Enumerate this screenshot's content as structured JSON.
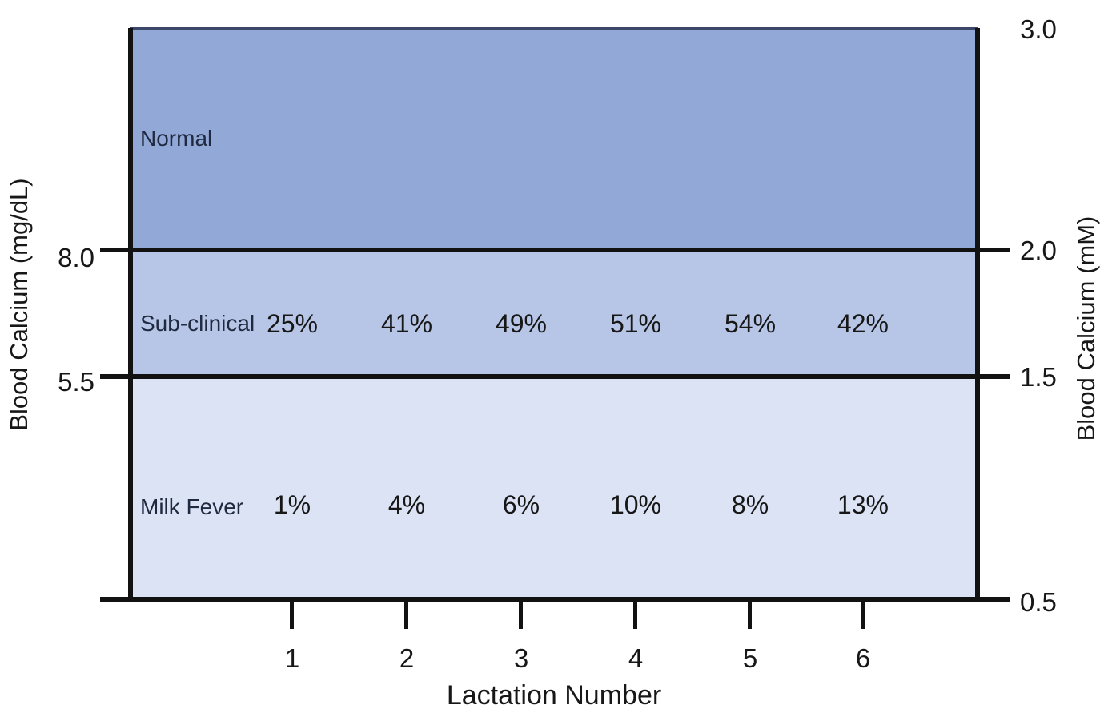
{
  "chart_data": {
    "type": "table",
    "title": "",
    "xlabel": "Lactation Number",
    "x_ticks": [
      "1",
      "2",
      "3",
      "4",
      "5",
      "6"
    ],
    "left_axis": {
      "label": "Blood Calcium (mg/dL)",
      "ticks": [
        "8.0",
        "5.5"
      ]
    },
    "right_axis": {
      "label": "Blood Calcium (mM)",
      "ticks": [
        "3.0",
        "2.0",
        "1.5",
        "0.5"
      ],
      "ylim": [
        0.5,
        3.0
      ]
    },
    "zones": [
      {
        "label": "Normal",
        "color": "#92a9d8",
        "ca_mgdl_range": [
          8.0,
          null
        ],
        "ca_mM_range": [
          2.0,
          3.0
        ],
        "values_pct": [],
        "labels": []
      },
      {
        "label": "Sub-clinical",
        "color": "#b7c6e6",
        "ca_mgdl_range": [
          5.5,
          8.0
        ],
        "ca_mM_range": [
          1.5,
          2.0
        ],
        "values_pct": [
          25,
          41,
          49,
          51,
          54,
          42
        ],
        "labels": [
          "25%",
          "41%",
          "49%",
          "51%",
          "54%",
          "42%"
        ]
      },
      {
        "label": "Milk Fever",
        "color": "#dbe3f4",
        "ca_mgdl_range": [
          null,
          5.5
        ],
        "ca_mM_range": [
          0.5,
          1.5
        ],
        "values_pct": [
          1,
          4,
          6,
          10,
          8,
          13
        ],
        "labels": [
          "1%",
          "4%",
          "6%",
          "10%",
          "8%",
          "13%"
        ]
      }
    ],
    "colors": {
      "axis_line": "#121212",
      "plot_top_border": "#3a4768",
      "text": "#171717",
      "zone_label_text": "#1f2940"
    },
    "layout": {
      "grid": "off",
      "legend": "none"
    }
  }
}
